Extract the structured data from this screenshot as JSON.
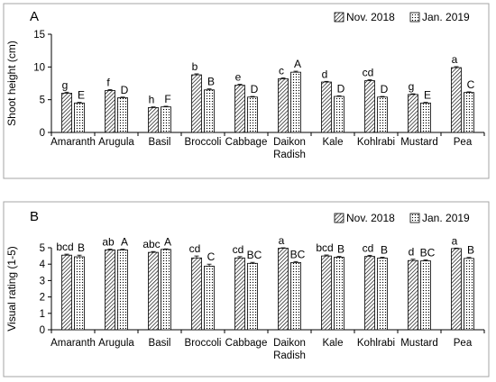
{
  "chart_data": [
    {
      "type": "bar",
      "panel_label": "A",
      "ylabel": "Shoot height (cm)",
      "ylim": [
        0,
        15
      ],
      "yticks": [
        0,
        5,
        10,
        15
      ],
      "categories": [
        "Amaranth",
        "Arugula",
        "Basil",
        "Broccoli",
        "Cabbage",
        "Daikon Radish",
        "Kale",
        "Kohlrabi",
        "Mustard",
        "Pea"
      ],
      "category_lines": [
        [
          "Amaranth"
        ],
        [
          "Arugula"
        ],
        [
          "Basil"
        ],
        [
          "Broccoli"
        ],
        [
          "Cabbage"
        ],
        [
          "Daikon",
          "Radish"
        ],
        [
          "Kale"
        ],
        [
          "Kohlrabi"
        ],
        [
          "Mustard"
        ],
        [
          "Pea"
        ]
      ],
      "legend_position": "top-right",
      "series": [
        {
          "name": "Nov. 2018",
          "pattern": "diagonal-hatch",
          "values": [
            6.0,
            6.4,
            3.8,
            8.8,
            7.2,
            8.2,
            7.7,
            7.9,
            5.8,
            9.9
          ],
          "errors": [
            0.15,
            0.15,
            0.1,
            0.15,
            0.15,
            0.15,
            0.1,
            0.15,
            0.1,
            0.15
          ],
          "labels": [
            "g",
            "f",
            "h",
            "b",
            "e",
            "c",
            "d",
            "cd",
            "g",
            "a"
          ]
        },
        {
          "name": "Jan. 2019",
          "pattern": "dots",
          "values": [
            4.5,
            5.3,
            3.9,
            6.5,
            5.4,
            9.2,
            5.5,
            5.4,
            4.5,
            6.1
          ],
          "errors": [
            0.1,
            0.1,
            0.1,
            0.15,
            0.1,
            0.15,
            0.1,
            0.1,
            0.1,
            0.1
          ],
          "labels": [
            "E",
            "D",
            "F",
            "B",
            "D",
            "A",
            "D",
            "D",
            "E",
            "C"
          ]
        }
      ]
    },
    {
      "type": "bar",
      "panel_label": "B",
      "ylabel": "Visual rating (1-5)",
      "ylim": [
        0,
        5
      ],
      "yticks": [
        0,
        1,
        2,
        3,
        4,
        5
      ],
      "categories": [
        "Amaranth",
        "Arugula",
        "Basil",
        "Broccoli",
        "Cabbage",
        "Daikon Radish",
        "Kale",
        "Kohlrabi",
        "Mustard",
        "Pea"
      ],
      "category_lines": [
        [
          "Amaranth"
        ],
        [
          "Arugula"
        ],
        [
          "Basil"
        ],
        [
          "Broccoli"
        ],
        [
          "Cabbage"
        ],
        [
          "Daikon",
          "Radish"
        ],
        [
          "Kale"
        ],
        [
          "Kohlrabi"
        ],
        [
          "Mustard"
        ],
        [
          "Pea"
        ]
      ],
      "legend_position": "top-right",
      "series": [
        {
          "name": "Nov. 2018",
          "pattern": "diagonal-hatch",
          "values": [
            4.55,
            4.87,
            4.72,
            4.38,
            4.38,
            4.97,
            4.5,
            4.47,
            4.22,
            4.95
          ],
          "errors": [
            0.06,
            0.05,
            0.05,
            0.12,
            0.08,
            0.03,
            0.06,
            0.07,
            0.08,
            0.03
          ],
          "labels": [
            "bcd",
            "ab",
            "abc",
            "cd",
            "cd",
            "a",
            "bcd",
            "cd",
            "d",
            "a"
          ]
        },
        {
          "name": "Jan. 2019",
          "pattern": "dots",
          "values": [
            4.45,
            4.87,
            4.9,
            3.88,
            4.05,
            4.1,
            4.42,
            4.37,
            4.2,
            4.35
          ],
          "errors": [
            0.1,
            0.04,
            0.03,
            0.12,
            0.06,
            0.06,
            0.05,
            0.05,
            0.06,
            0.06
          ],
          "labels": [
            "B",
            "A",
            "A",
            "C",
            "BC",
            "BC",
            "B",
            "B",
            "BC",
            "B"
          ]
        }
      ]
    }
  ]
}
